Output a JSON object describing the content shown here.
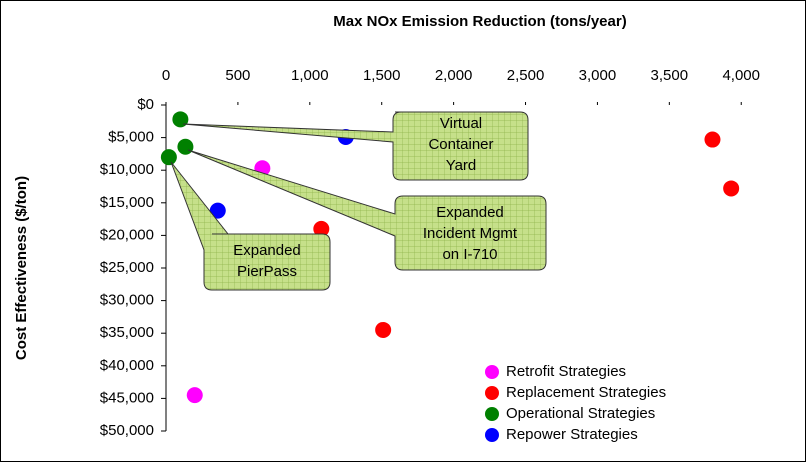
{
  "chart_data": {
    "type": "scatter",
    "title": "Max NOx Emission Reduction (tons/year)",
    "ylabel": "Cost Effectiveness ($/ton)",
    "xlim": [
      0,
      4200
    ],
    "ylim": [
      0,
      50000
    ],
    "y_inverted": true,
    "xticks": [
      0,
      500,
      {
        "value": 1000,
        "label": "1,000"
      },
      {
        "value": 1500,
        "label": "1,500"
      },
      {
        "value": 2000,
        "label": "2,000"
      },
      {
        "value": 2500,
        "label": "2,500"
      },
      {
        "value": 3000,
        "label": "3,000"
      },
      {
        "value": 3500,
        "label": "3,500"
      },
      {
        "value": 4000,
        "label": "4,000"
      }
    ],
    "yticks": [
      {
        "value": 0,
        "label": "$0"
      },
      {
        "value": 5000,
        "label": "$5,000"
      },
      {
        "value": 10000,
        "label": "$10,000"
      },
      {
        "value": 15000,
        "label": "$15,000"
      },
      {
        "value": 20000,
        "label": "$20,000"
      },
      {
        "value": 25000,
        "label": "$25,000"
      },
      {
        "value": 30000,
        "label": "$30,000"
      },
      {
        "value": 35000,
        "label": "$35,000"
      },
      {
        "value": 40000,
        "label": "$40,000"
      },
      {
        "value": 45000,
        "label": "$45,000"
      },
      {
        "value": 50000,
        "label": "$50,000"
      }
    ],
    "series": [
      {
        "name": "Retrofit Strategies",
        "color": "#ff00ff",
        "x": [
          670,
          200
        ],
        "y": [
          9700,
          44500
        ]
      },
      {
        "name": "Replacement Strategies",
        "color": "#ff0000",
        "x": [
          3800,
          3930,
          1080,
          1510
        ],
        "y": [
          5300,
          12800,
          19000,
          34500
        ]
      },
      {
        "name": "Operational Strategies",
        "color": "#008000",
        "x": [
          100,
          20,
          135
        ],
        "y": [
          2200,
          8000,
          6400
        ]
      },
      {
        "name": "Repower Strategies",
        "color": "#0000ff",
        "x": [
          1250,
          360
        ],
        "y": [
          4900,
          16200
        ]
      }
    ],
    "annotations": [
      {
        "lines": [
          "Virtual",
          "Container",
          "Yard"
        ]
      },
      {
        "lines": [
          "Expanded",
          "Incident Mgmt",
          "on I-710"
        ]
      },
      {
        "lines": [
          "Expanded",
          "PierPass"
        ]
      }
    ]
  }
}
